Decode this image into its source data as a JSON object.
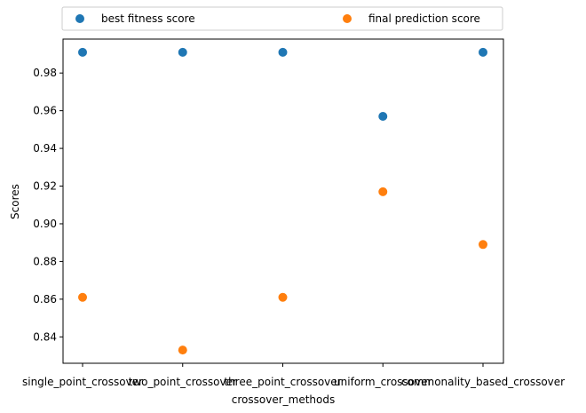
{
  "chart_data": {
    "type": "scatter",
    "categories": [
      "single_point_crossover",
      "two_point_crossover",
      "three_point_crossover",
      "uniform_crossover",
      "commonality_based_crossover"
    ],
    "series": [
      {
        "name": "best fitness score",
        "color": "#1f77b4",
        "values": [
          0.991,
          0.991,
          0.991,
          0.957,
          0.991
        ]
      },
      {
        "name": "final prediction score",
        "color": "#ff7f0e",
        "values": [
          0.861,
          0.833,
          0.861,
          0.917,
          0.889
        ]
      }
    ],
    "xlabel": "crossover_methods",
    "ylabel": "Scores",
    "ylim": [
      0.826,
      0.998
    ],
    "yticks": [
      0.84,
      0.86,
      0.88,
      0.9,
      0.92,
      0.94,
      0.96,
      0.98
    ],
    "ytick_labels": [
      "0.84",
      "0.86",
      "0.88",
      "0.90",
      "0.92",
      "0.94",
      "0.96",
      "0.98"
    ],
    "legend_placement": "top, above plot, two columns",
    "grid": false
  }
}
